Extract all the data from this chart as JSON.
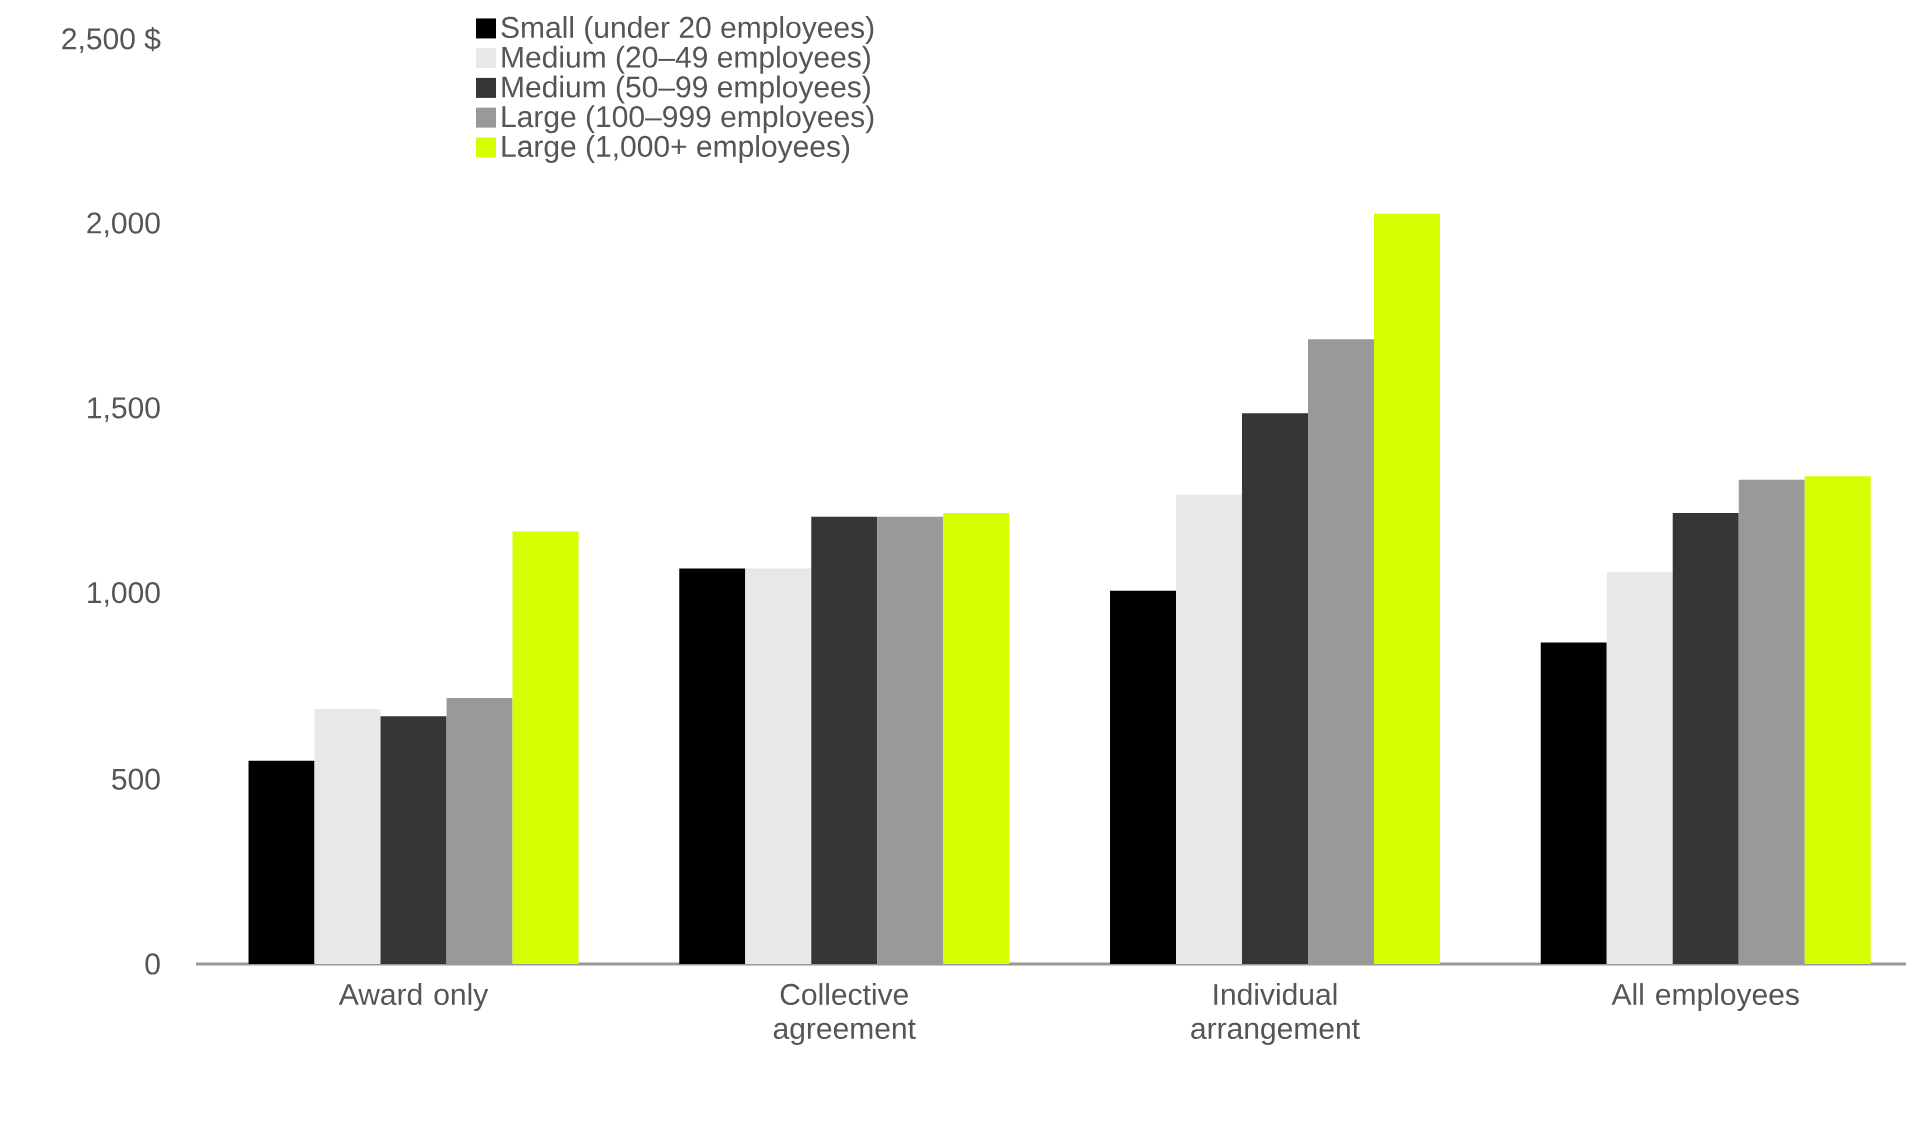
{
  "chart_data": {
    "type": "bar",
    "categories": [
      "Award only",
      "Collective agreement",
      "Individual arrangement",
      "All employees"
    ],
    "series": [
      {
        "name": "Small (under 20 employees)",
        "color": "#000000",
        "values": [
          550,
          1070,
          1010,
          870
        ]
      },
      {
        "name": "Medium (20–49 employees)",
        "color": "#e8e8e8",
        "values": [
          690,
          1070,
          1270,
          1060
        ]
      },
      {
        "name": "Medium (50–99 employees)",
        "color": "#363636",
        "values": [
          670,
          1210,
          1490,
          1220
        ]
      },
      {
        "name": "Large (100–999 employees)",
        "color": "#999999",
        "values": [
          720,
          1210,
          1690,
          1310
        ]
      },
      {
        "name": "Large (1,000+ employees)",
        "color": "#d4ff00",
        "values": [
          1170,
          1220,
          2030,
          1320
        ]
      }
    ],
    "ylim": [
      0,
      2500
    ],
    "yticks": [
      {
        "value": 0,
        "label": "0"
      },
      {
        "value": 500,
        "label": "500"
      },
      {
        "value": 1000,
        "label": "1,000"
      },
      {
        "value": 1500,
        "label": "1,500"
      },
      {
        "value": 2000,
        "label": "2,000"
      },
      {
        "value": 2500,
        "label": "2,500 $"
      }
    ],
    "legend": "top left"
  }
}
